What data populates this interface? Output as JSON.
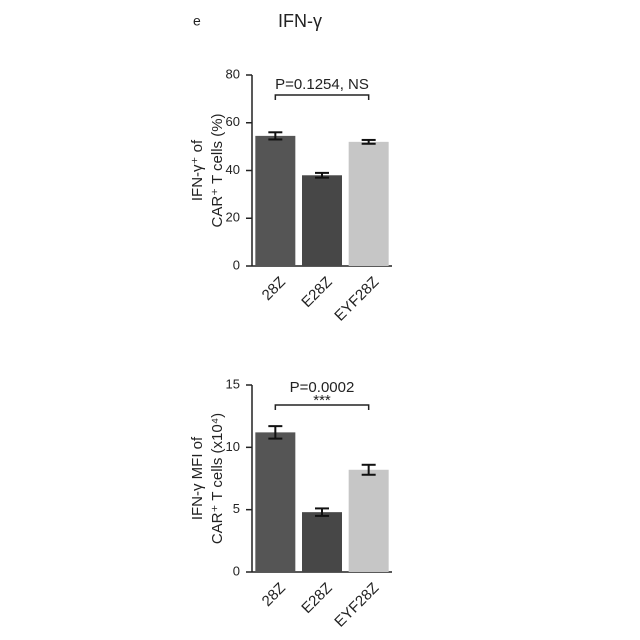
{
  "chart_data": [
    {
      "type": "bar",
      "panel_label": "e",
      "title": "IFN-γ",
      "ylabel": [
        "IFN-γ⁺ of",
        "CAR⁺ T cells (%)"
      ],
      "categories": [
        "28Z",
        "E28Z",
        "EYF28Z"
      ],
      "values": [
        54.5,
        38,
        52
      ],
      "errors": [
        1.5,
        1,
        0.8
      ],
      "colors": [
        "#555555",
        "#474747",
        "#c6c6c6"
      ],
      "ylim": [
        0,
        80
      ],
      "yticks": [
        0,
        20,
        40,
        60,
        80
      ],
      "annotations": [
        "P=0.1254, NS"
      ]
    },
    {
      "type": "bar",
      "ylabel": [
        "IFN-γ MFI of",
        "CAR⁺ T cells (x10⁴)"
      ],
      "categories": [
        "28Z",
        "E28Z",
        "EYF28Z"
      ],
      "values": [
        11.2,
        4.8,
        8.2
      ],
      "errors": [
        0.5,
        0.3,
        0.4
      ],
      "colors": [
        "#555555",
        "#474747",
        "#c6c6c6"
      ],
      "ylim": [
        0,
        15
      ],
      "yticks": [
        0,
        5,
        10,
        15
      ],
      "annotations": [
        "P=0.0002",
        "***"
      ]
    }
  ]
}
